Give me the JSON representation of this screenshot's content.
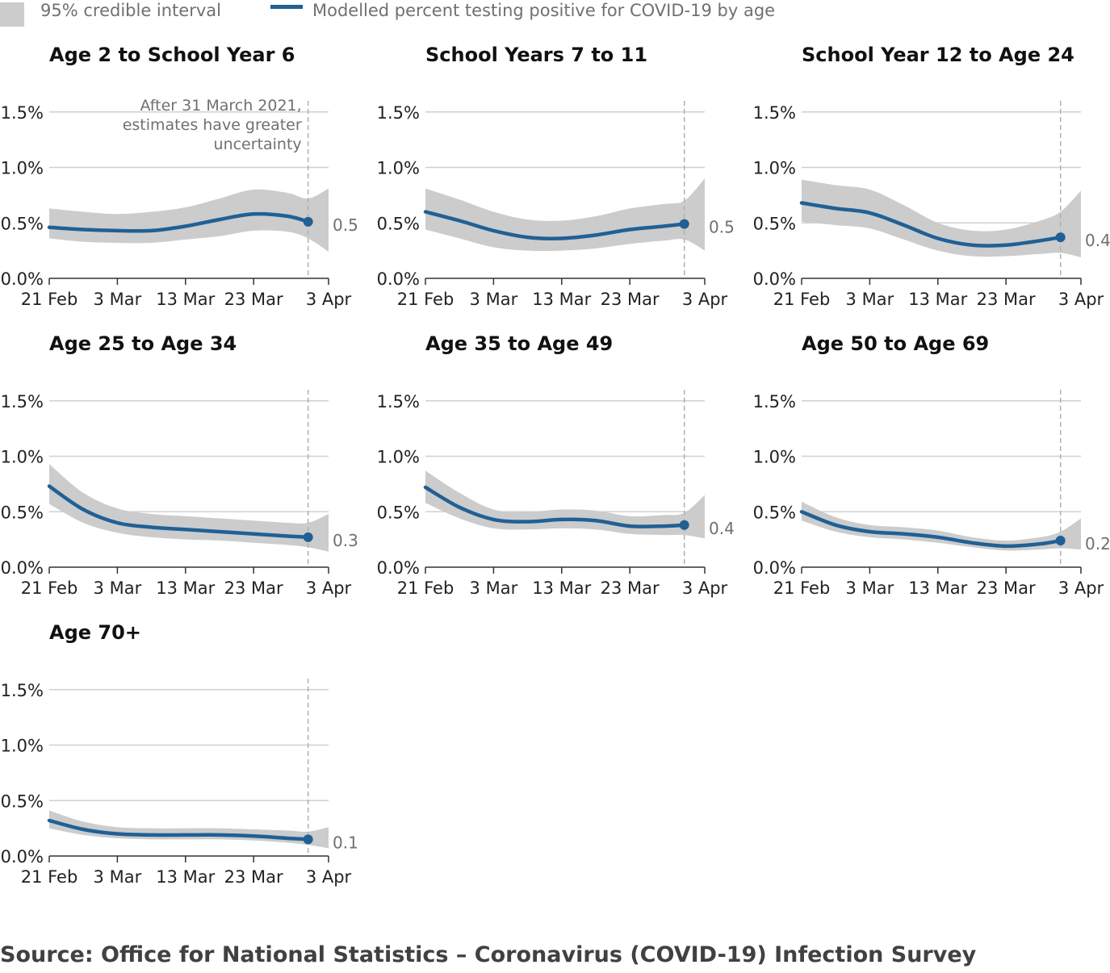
{
  "legend": {
    "band_label": "95% credible interval",
    "line_label": "Modelled percent testing positive for COVID-19 by age"
  },
  "source": "Source: Office for National Statistics – Coronavirus (COVID-19) Infection Survey",
  "colors": {
    "line": "#206095",
    "band": "#cccccc",
    "grid": "#d0d0d0",
    "axis": "#333333",
    "divider": "#b0b0b0"
  },
  "chart_data": {
    "type": "line",
    "x_ticks": [
      "21 Feb",
      "3 Mar",
      "13 Mar",
      "23 Mar",
      "3 Apr"
    ],
    "x_range": [
      "2021-02-21",
      "2021-04-03"
    ],
    "x_tick_dates": [
      "2021-02-21",
      "2021-03-03",
      "2021-03-13",
      "2021-03-23",
      "2021-04-03"
    ],
    "y_ticks": [
      "0.0%",
      "0.5%",
      "1.0%",
      "1.5%"
    ],
    "y_tick_values": [
      0,
      0.5,
      1.0,
      1.5
    ],
    "ylim": [
      0,
      1.5
    ],
    "divider_date": "2021-03-31",
    "divider_note": [
      "After 31 March 2021,",
      "estimates have greater",
      "uncertainty"
    ],
    "x": [
      "2021-02-21",
      "2021-02-26",
      "2021-03-03",
      "2021-03-08",
      "2021-03-13",
      "2021-03-18",
      "2021-03-23",
      "2021-03-28",
      "2021-03-31",
      "2021-04-03"
    ],
    "panels": [
      {
        "title": "Age 2 to School Year 6",
        "end_label": "0.5",
        "estimate": [
          0.46,
          0.44,
          0.43,
          0.43,
          0.47,
          0.53,
          0.58,
          0.56,
          0.51,
          null
        ],
        "lower": [
          0.36,
          0.33,
          0.32,
          0.32,
          0.35,
          0.38,
          0.43,
          0.42,
          0.36,
          0.24
        ],
        "upper": [
          0.63,
          0.6,
          0.58,
          0.6,
          0.64,
          0.72,
          0.8,
          0.77,
          0.72,
          0.81
        ]
      },
      {
        "title": "School Years 7 to 11",
        "end_label": "0.5",
        "estimate": [
          0.6,
          0.52,
          0.43,
          0.37,
          0.36,
          0.39,
          0.44,
          0.47,
          0.49,
          null
        ],
        "lower": [
          0.44,
          0.36,
          0.28,
          0.25,
          0.25,
          0.27,
          0.31,
          0.34,
          0.35,
          0.25
        ],
        "upper": [
          0.81,
          0.71,
          0.6,
          0.53,
          0.52,
          0.56,
          0.63,
          0.67,
          0.7,
          0.9
        ]
      },
      {
        "title": "School Year 12 to Age 24",
        "end_label": "0.4",
        "estimate": [
          0.68,
          0.63,
          0.59,
          0.48,
          0.36,
          0.3,
          0.3,
          0.34,
          0.37,
          null
        ],
        "lower": [
          0.51,
          0.48,
          0.45,
          0.35,
          0.25,
          0.2,
          0.2,
          0.22,
          0.23,
          0.19
        ],
        "upper": [
          0.89,
          0.84,
          0.8,
          0.66,
          0.5,
          0.43,
          0.44,
          0.52,
          0.6,
          0.79
        ]
      },
      {
        "title": "Age 25 to Age 34",
        "end_label": "0.3",
        "estimate": [
          0.73,
          0.52,
          0.4,
          0.36,
          0.34,
          0.32,
          0.3,
          0.28,
          0.27,
          null
        ],
        "lower": [
          0.57,
          0.4,
          0.31,
          0.27,
          0.25,
          0.24,
          0.22,
          0.2,
          0.18,
          0.14
        ],
        "upper": [
          0.93,
          0.67,
          0.53,
          0.48,
          0.46,
          0.44,
          0.42,
          0.4,
          0.4,
          0.48
        ]
      },
      {
        "title": "Age 35 to Age 49",
        "end_label": "0.4",
        "estimate": [
          0.72,
          0.54,
          0.43,
          0.41,
          0.43,
          0.42,
          0.37,
          0.37,
          0.38,
          null
        ],
        "lower": [
          0.58,
          0.44,
          0.35,
          0.34,
          0.35,
          0.34,
          0.3,
          0.29,
          0.29,
          0.26
        ],
        "upper": [
          0.87,
          0.67,
          0.52,
          0.5,
          0.52,
          0.51,
          0.46,
          0.47,
          0.49,
          0.65
        ]
      },
      {
        "title": "Age 50 to Age 69",
        "end_label": "0.2",
        "estimate": [
          0.5,
          0.38,
          0.32,
          0.3,
          0.27,
          0.22,
          0.19,
          0.21,
          0.24,
          null
        ],
        "lower": [
          0.42,
          0.32,
          0.27,
          0.25,
          0.22,
          0.18,
          0.15,
          0.16,
          0.17,
          0.16
        ],
        "upper": [
          0.59,
          0.45,
          0.38,
          0.36,
          0.33,
          0.27,
          0.24,
          0.27,
          0.32,
          0.44
        ]
      },
      {
        "title": "Age 70+",
        "end_label": "0.1",
        "estimate": [
          0.32,
          0.24,
          0.2,
          0.19,
          0.19,
          0.19,
          0.18,
          0.16,
          0.15,
          null
        ],
        "lower": [
          0.25,
          0.19,
          0.16,
          0.15,
          0.15,
          0.15,
          0.14,
          0.12,
          0.1,
          0.07
        ],
        "upper": [
          0.41,
          0.31,
          0.26,
          0.25,
          0.25,
          0.25,
          0.24,
          0.23,
          0.22,
          0.26
        ]
      }
    ]
  }
}
